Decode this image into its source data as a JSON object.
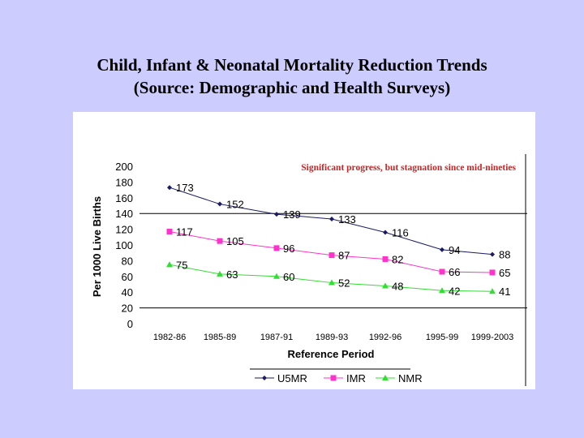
{
  "slide": {
    "title_line1": "Child, Infant & Neonatal Mortality Reduction Trends",
    "title_line2": "(Source: Demographic and Health Surveys)"
  },
  "chart_data": {
    "type": "line",
    "annotation": "Significant progress, but stagnation since mid-nineties",
    "annotation_color": "#cc2222",
    "xlabel": "Reference Period",
    "ylabel": "Per 1000 Live Births",
    "ylim": [
      0,
      200
    ],
    "yticks": [
      0,
      20,
      40,
      60,
      80,
      100,
      120,
      140,
      160,
      180,
      200
    ],
    "categories": [
      "1982-86",
      "1985-89",
      "1987-91",
      "1989-93",
      "1992-96",
      "1995-99",
      "1999-2003"
    ],
    "legend_position": "bottom",
    "reference_lines": [
      140,
      20
    ],
    "series": [
      {
        "name": "U5MR",
        "color": "#1a1a66",
        "marker": "diamond",
        "values": [
          173,
          152,
          139,
          133,
          116,
          94,
          88
        ]
      },
      {
        "name": "IMR",
        "color": "#ff33cc",
        "marker": "square",
        "values": [
          117,
          105,
          96,
          87,
          82,
          66,
          65
        ]
      },
      {
        "name": "NMR",
        "color": "#33dd33",
        "marker": "triangle",
        "values": [
          75,
          63,
          60,
          52,
          48,
          42,
          41
        ]
      }
    ]
  }
}
